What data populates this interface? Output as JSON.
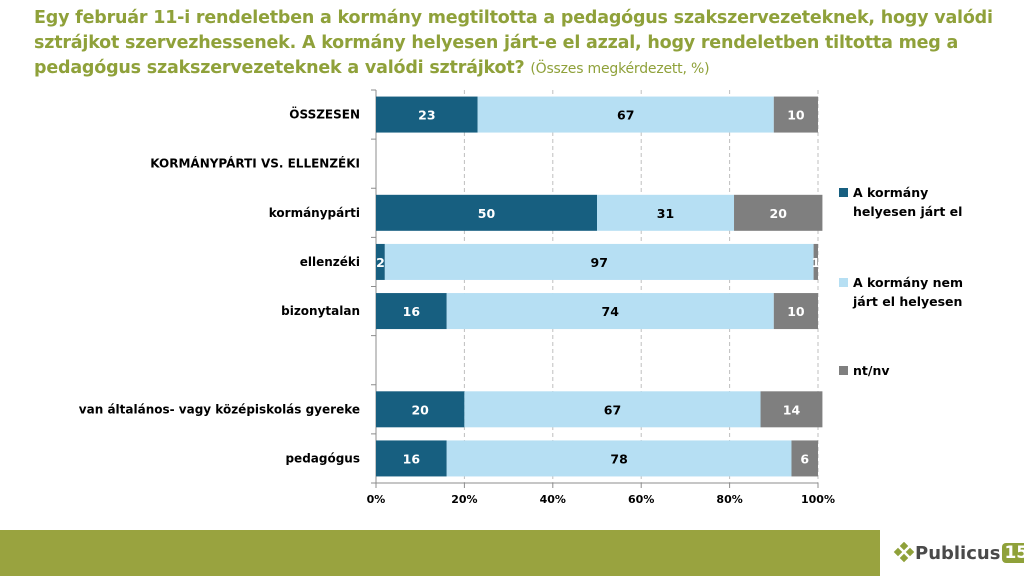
{
  "title": {
    "main": "Egy február 11-i rendeletben a kormány megtiltotta a pedagógus szakszervezeteknek, hogy valódi sztrájkot szervezhessenek. A kormány helyesen járt-e el azzal, hogy rendeletben tiltotta meg a pedagógus szakszervezeteknek a valódi sztrájkot?",
    "subtitle": "(Összes megkérdezett, %)"
  },
  "chart_data": {
    "type": "bar",
    "orientation": "horizontal",
    "stacked": "percent",
    "title": "Egy február 11-i rendeletben a kormány megtiltotta a pedagógus szakszervezeteknek, hogy valódi sztrájkot szervezhessenek. A kormány helyesen járt-e el azzal, hogy rendeletben tiltotta meg a pedagógus szakszervezeteknek a valódi sztrájkot?",
    "subtitle": "(Összes megkérdezett, %)",
    "xlabel": "",
    "ylabel": "",
    "xlim": [
      0,
      100
    ],
    "x_ticks": [
      "0%",
      "20%",
      "40%",
      "60%",
      "80%",
      "100%"
    ],
    "grid": "vertical dashed",
    "legend_position": "right",
    "categories": [
      "ÖSSZESEN",
      "KORMÁNYPÁRTI VS. ELLENZÉKI",
      "kormánypárti",
      "ellenzéki",
      "bizonytalan",
      "",
      "van általános- vagy középiskolás gyereke",
      "pedagógus"
    ],
    "series": [
      {
        "name": "A kormány helyesen járt el",
        "color": "#175f80",
        "label_color": "#ffffff",
        "values": [
          23,
          null,
          50,
          2,
          16,
          null,
          20,
          16
        ]
      },
      {
        "name": "A kormány nem járt el helyesen",
        "color": "#b6dff3",
        "label_color": "#000000",
        "values": [
          67,
          null,
          31,
          97,
          74,
          null,
          67,
          78
        ]
      },
      {
        "name": "nt/nv",
        "color": "#7f7f7f",
        "label_color": "#ffffff",
        "values": [
          10,
          null,
          20,
          1,
          10,
          null,
          14,
          6
        ]
      }
    ]
  },
  "footer": {
    "logo_text": "Publicus",
    "logo_number": "15",
    "bar_color": "#99a33f"
  }
}
